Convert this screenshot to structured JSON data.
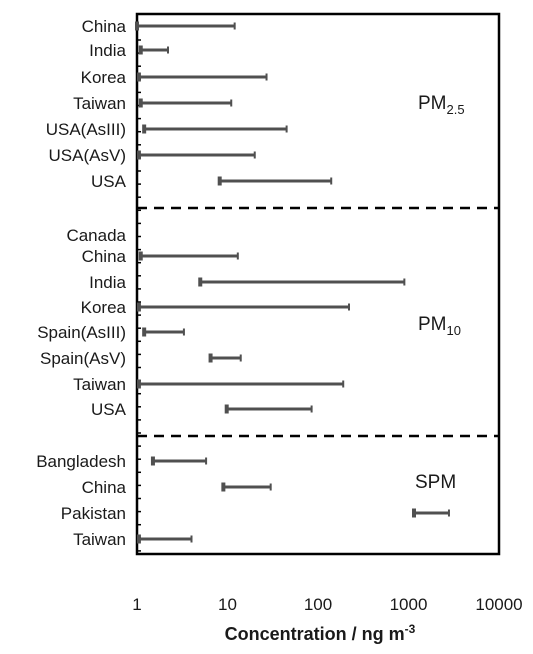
{
  "chart_data": {
    "type": "range-bar",
    "orientation": "horizontal",
    "x_scale": "log",
    "xlim": [
      1,
      10000
    ],
    "x_ticks": [
      "1",
      "10",
      "100",
      "1000",
      "10000"
    ],
    "xlabel_main": "Concentration / ng m",
    "xlabel_sup": "-3",
    "ylabel": "",
    "grid": false,
    "groups": [
      {
        "label_main": "PM",
        "label_sub": "2.5",
        "items": [
          {
            "category": "China",
            "min": 1.0,
            "max": 12
          },
          {
            "category": "India",
            "min": 1.1,
            "max": 2.2
          },
          {
            "category": "Korea",
            "min": 1.05,
            "max": 27
          },
          {
            "category": "Taiwan",
            "min": 1.1,
            "max": 11
          },
          {
            "category": "USA(AsIII)",
            "min": 1.2,
            "max": 45
          },
          {
            "category": "USA(AsV)",
            "min": 1.05,
            "max": 20
          },
          {
            "category": "USA",
            "min": 8.2,
            "max": 140
          }
        ]
      },
      {
        "label_main": "PM",
        "label_sub": "10",
        "items": [
          {
            "category": "Canada",
            "min": null,
            "max": null
          },
          {
            "category": "China",
            "min": 1.1,
            "max": 13
          },
          {
            "category": "India",
            "min": 5.0,
            "max": 900
          },
          {
            "category": "Korea",
            "min": 1.05,
            "max": 220
          },
          {
            "category": "Spain(AsIII)",
            "min": 1.2,
            "max": 3.3
          },
          {
            "category": "Spain(AsV)",
            "min": 6.5,
            "max": 14
          },
          {
            "category": "Taiwan",
            "min": 1.05,
            "max": 190
          },
          {
            "category": "USA",
            "min": 9.8,
            "max": 85
          }
        ]
      },
      {
        "label_main": "SPM",
        "label_sub": "",
        "items": [
          {
            "category": "Bangladesh",
            "min": 1.5,
            "max": 5.8
          },
          {
            "category": "China",
            "min": 9.0,
            "max": 30
          },
          {
            "category": "Pakistan",
            "min": 1150,
            "max": 2800
          },
          {
            "category": "Taiwan",
            "min": 1.05,
            "max": 4.0
          }
        ]
      }
    ],
    "colors": {
      "bar": "#505050",
      "axis": "#000000",
      "text": "#1a1a1a"
    }
  }
}
